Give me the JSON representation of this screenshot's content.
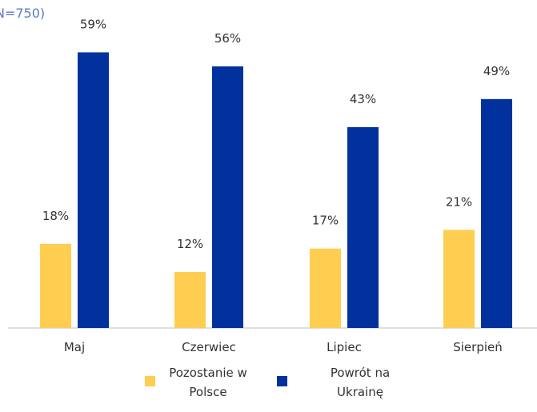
{
  "note": "N=750)",
  "chart_data": {
    "type": "bar",
    "categories": [
      "Maj",
      "Czerwiec",
      "Lipiec",
      "Sierpień"
    ],
    "series": [
      {
        "name": "Pozostanie w Polsce",
        "values": [
          18,
          12,
          17,
          21
        ],
        "labels": [
          "18%",
          "12%",
          "17%",
          "21%"
        ],
        "color": "#ffcd4f"
      },
      {
        "name": "Powrót na Ukrainę",
        "values": [
          59,
          56,
          43,
          49
        ],
        "labels": [
          "59%",
          "56%",
          "43%",
          "49%"
        ],
        "color": "#00319c"
      }
    ],
    "title": "",
    "xlabel": "",
    "ylabel": "",
    "ylim": [
      0,
      60
    ],
    "grid": false,
    "legend_position": "bottom"
  },
  "legend": {
    "item1": "Pozostanie w Polsce",
    "item2": "Powrót na Ukrainę"
  },
  "colors": {
    "series1": "#ffcd4f",
    "series2": "#00319c",
    "axis": "#bfbfbf",
    "text": "#333333",
    "note": "#5b79c9"
  }
}
